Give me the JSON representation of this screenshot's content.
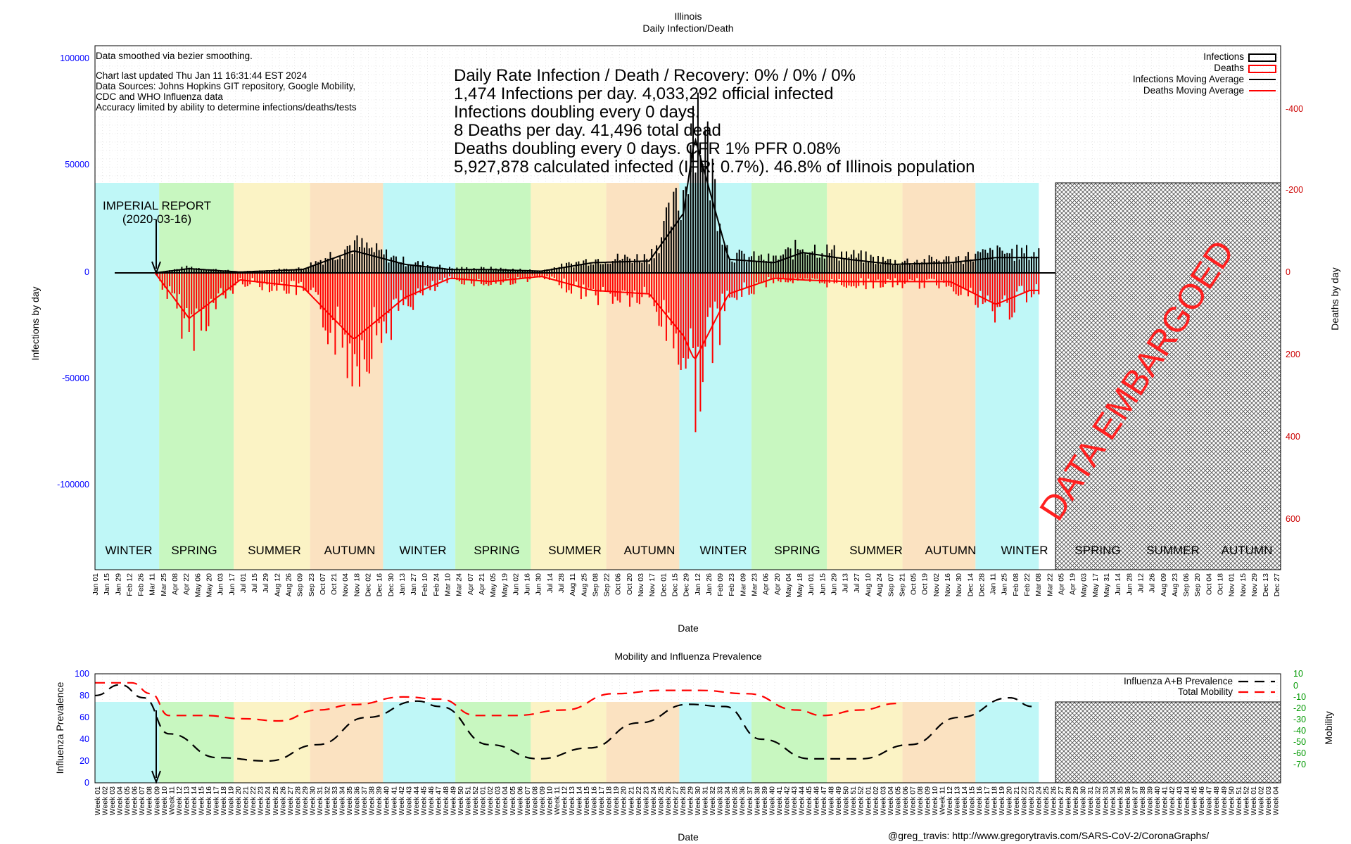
{
  "main_chart": {
    "title": "Illinois",
    "subtitle": "Daily Infection/Death",
    "xlabel": "Date",
    "ylabel_left": "Infections by day",
    "ylabel_right": "Deaths by day",
    "notes": [
      "Data smoothed via bezier smoothing.",
      "Chart last updated Thu Jan 11 16:31:44 EST 2024",
      "Data Sources: Johns Hopkins GIT repository, Google Mobility,",
      "CDC and WHO Influenza data",
      "Accuracy limited by ability to determine infections/deaths/tests"
    ],
    "stats": [
      "Daily Rate Infection / Death / Recovery: 0% / 0% / 0%",
      "1,474 Infections per day.  4,033,292 official infected",
      "Infections doubling every 0 days.",
      "8 Deaths per day.  41,496 total dead",
      "Deaths doubling every 0 days.  CFR 1%  PFR 0.08%",
      "5,927,878 calculated infected (IFR: 0.7%).  46.8% of Illinois population"
    ],
    "legend": [
      "Infections",
      "Deaths",
      "Infections Moving Average",
      "Deaths Moving Average"
    ],
    "annotation": [
      "IMPERIAL REPORT",
      "(2020-03-16)"
    ],
    "embargo_text": "DATA EMBARGOED",
    "season_labels": [
      "WINTER",
      "SPRING",
      "SUMMER",
      "AUTUMN",
      "WINTER",
      "SPRING",
      "SUMMER",
      "AUTUMN",
      "WINTER",
      "SPRING",
      "SUMMER",
      "AUTUMN",
      "WINTER",
      "SPRING",
      "SUMMER",
      "AUTUMN"
    ],
    "left_ticks": [
      "100000",
      "50000",
      "0",
      "-50000",
      "-100000"
    ],
    "right_ticks": [
      "-400",
      "-200",
      "0",
      "200",
      "400",
      "600"
    ],
    "colors": {
      "infections": "#000000",
      "deaths": "#ff0000",
      "left_axis": "#0000ff",
      "winter": "#bff7f7",
      "spring": "#c8f7c0",
      "summer": "#fbf3c5",
      "autumn": "#fbe2c1"
    }
  },
  "mobility_chart": {
    "title": "Mobility and Influenza Prevalence",
    "xlabel": "Date",
    "ylabel_left": "Influenza Prevalence",
    "ylabel_right": "Mobility",
    "legend": [
      "Influenza A+B Prevalence",
      "Total Mobility"
    ],
    "left_ticks": [
      "100",
      "80",
      "60",
      "40",
      "20",
      "0"
    ],
    "right_ticks": [
      "10",
      "0",
      "-10",
      "-20",
      "-30",
      "-40",
      "-50",
      "-60",
      "-70"
    ],
    "colors": {
      "left_axis": "#0000ff",
      "right_axis": "#009900"
    }
  },
  "credit": "@greg_travis: http://www.gregorytravis.com/SARS-CoV-2/CoronaGraphs/",
  "chart_data": [
    {
      "type": "bar",
      "title": "Illinois",
      "subtitle": "Daily Infection/Death",
      "xlabel": "Date",
      "ylabel": "Infections by day",
      "y2label": "Deaths by day",
      "ylim": [
        -140000,
        110000
      ],
      "y2lim": [
        -550,
        650
      ],
      "series": [
        {
          "name": "Infections",
          "x": [
            "2020-03-15",
            "2020-04-26",
            "2020-06-28",
            "2020-09-13",
            "2020-11-15",
            "2021-01-17",
            "2021-03-14",
            "2021-05-02",
            "2021-07-04",
            "2021-09-05",
            "2021-11-14",
            "2021-12-26",
            "2022-01-09",
            "2022-02-20",
            "2022-04-17",
            "2022-05-22",
            "2022-07-17",
            "2022-09-11",
            "2022-11-20",
            "2023-01-15",
            "2023-02-26"
          ],
          "values": [
            0,
            2500,
            500,
            2000,
            13000,
            5000,
            2000,
            2000,
            1000,
            6000,
            7000,
            35000,
            80000,
            8000,
            6000,
            12000,
            8000,
            5000,
            6000,
            9000,
            9000
          ]
        },
        {
          "name": "Deaths",
          "x": [
            "2020-03-15",
            "2020-04-26",
            "2020-06-28",
            "2020-09-13",
            "2020-11-15",
            "2021-01-17",
            "2021-03-14",
            "2021-05-02",
            "2021-07-04",
            "2021-09-05",
            "2021-11-14",
            "2021-12-26",
            "2022-01-09",
            "2022-02-20",
            "2022-04-17",
            "2022-05-22",
            "2022-07-17",
            "2022-09-11",
            "2022-11-20",
            "2023-01-15",
            "2023-02-26"
          ],
          "values": [
            0,
            130,
            20,
            40,
            190,
            70,
            15,
            25,
            10,
            50,
            60,
            180,
            250,
            60,
            15,
            20,
            25,
            25,
            25,
            90,
            50
          ]
        }
      ]
    },
    {
      "type": "line",
      "title": "Mobility and Influenza Prevalence",
      "xlabel": "Date",
      "ylabel": "Influenza Prevalence",
      "y2label": "Mobility",
      "ylim": [
        0,
        100
      ],
      "y2lim": [
        -76,
        10
      ],
      "series": [
        {
          "name": "Influenza A+B Prevalence",
          "x": [
            "2020-01-01",
            "2020-02-01",
            "2020-03-01",
            "2020-04-01",
            "2020-06-01",
            "2020-08-01",
            "2020-10-01",
            "2020-12-01",
            "2021-02-01",
            "2021-03-01",
            "2021-05-01",
            "2021-07-01",
            "2021-09-01",
            "2021-11-01",
            "2022-01-01",
            "2022-02-15",
            "2022-04-01",
            "2022-06-01",
            "2022-08-01",
            "2022-10-01",
            "2022-12-01",
            "2023-02-01",
            "2023-03-01"
          ],
          "values": [
            80,
            90,
            78,
            45,
            23,
            20,
            35,
            60,
            75,
            70,
            35,
            22,
            32,
            55,
            72,
            70,
            40,
            22,
            22,
            35,
            60,
            78,
            70
          ]
        },
        {
          "name": "Total Mobility",
          "x": [
            "2020-01-01",
            "2020-02-15",
            "2020-03-10",
            "2020-04-01",
            "2020-05-15",
            "2020-07-01",
            "2020-08-15",
            "2020-10-01",
            "2020-11-15",
            "2021-01-15",
            "2021-03-01",
            "2021-04-15",
            "2021-06-01",
            "2021-08-01",
            "2021-10-01",
            "2021-12-01",
            "2022-01-15",
            "2022-03-15",
            "2022-05-15",
            "2022-06-15",
            "2022-08-01",
            "2022-09-15"
          ],
          "values": [
            5,
            5,
            -5,
            -25,
            -25,
            -28,
            -30,
            -20,
            -15,
            -8,
            -10,
            -25,
            -25,
            -20,
            -5,
            -2,
            -2,
            -5,
            -20,
            -25,
            -20,
            -14
          ]
        }
      ]
    }
  ]
}
